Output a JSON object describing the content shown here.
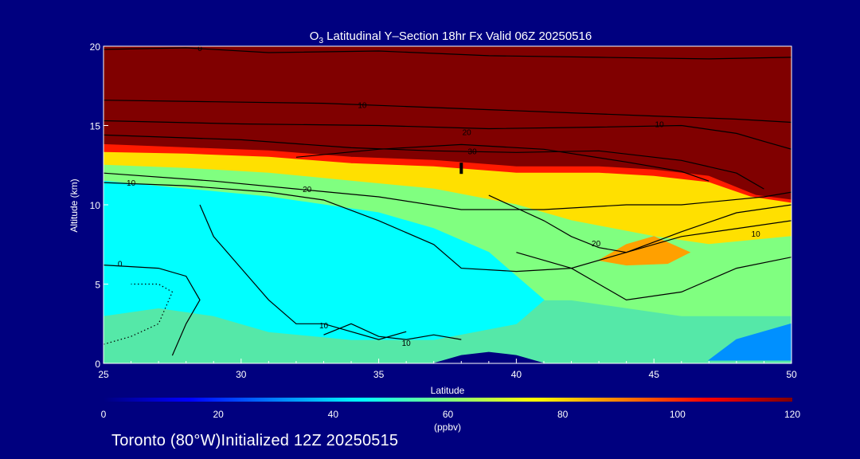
{
  "footer": {
    "location": "Toronto (80°W)",
    "initialized": "Initialized 12Z 20250515"
  },
  "chart_data": {
    "type": "heatmap",
    "title": {
      "species_main": "O",
      "species_sub": "3",
      "rest": " Latitudinal Y–Section 18hr  Fx Valid 06Z 20250516"
    },
    "xlabel": "Latitude",
    "ylabel": "Altitude (km)",
    "xlim": [
      25,
      50
    ],
    "ylim": [
      0,
      20
    ],
    "x_ticks": [
      25,
      30,
      35,
      40,
      45,
      50
    ],
    "y_ticks": [
      0,
      5,
      10,
      15,
      20
    ],
    "colorbar": {
      "label": "(ppbv)",
      "min": 0,
      "max": 120,
      "ticks": [
        0,
        20,
        40,
        60,
        80,
        100,
        120
      ],
      "stops": [
        "#00007f",
        "#0000ff",
        "#0080ff",
        "#00ffff",
        "#80ff80",
        "#ffff00",
        "#ff8000",
        "#ff0000",
        "#800000"
      ]
    },
    "colors": {
      "background": "#00007f",
      "high": "#800000",
      "contour": "#000000"
    },
    "field_regions": [
      {
        "name": "stratosphere",
        "value": 120,
        "color": "#800000",
        "points": [
          [
            25,
            20
          ],
          [
            50,
            20
          ],
          [
            50,
            10.3
          ],
          [
            48.7,
            10.6
          ],
          [
            47,
            11.8
          ],
          [
            45,
            12.2
          ],
          [
            43,
            12.4
          ],
          [
            40,
            12.4
          ],
          [
            37,
            12.8
          ],
          [
            34,
            13
          ],
          [
            31,
            13.4
          ],
          [
            28,
            13.6
          ],
          [
            25,
            13.8
          ]
        ]
      },
      {
        "name": "transition",
        "value": 110,
        "color": "#ff1a00",
        "points": [
          [
            25,
            13.8
          ],
          [
            28,
            13.6
          ],
          [
            31,
            13.4
          ],
          [
            34,
            13
          ],
          [
            37,
            12.8
          ],
          [
            40,
            12.4
          ],
          [
            43,
            12.4
          ],
          [
            45,
            12.2
          ],
          [
            47,
            11.8
          ],
          [
            48.7,
            10.6
          ],
          [
            50,
            10.3
          ],
          [
            50,
            10.1
          ],
          [
            48.5,
            10.5
          ],
          [
            47,
            11.4
          ],
          [
            45,
            11.8
          ],
          [
            43,
            12
          ],
          [
            40,
            12
          ],
          [
            37,
            12.4
          ],
          [
            34,
            12.6
          ],
          [
            31,
            13
          ],
          [
            28,
            13.2
          ],
          [
            25,
            13.3
          ]
        ]
      },
      {
        "name": "upper-trop-yellow",
        "value": 80,
        "color": "#ffe000",
        "points": [
          [
            25,
            13.3
          ],
          [
            28,
            13.2
          ],
          [
            31,
            13
          ],
          [
            34,
            12.6
          ],
          [
            37,
            12.4
          ],
          [
            40,
            12
          ],
          [
            43,
            12
          ],
          [
            45,
            11.8
          ],
          [
            47,
            11.4
          ],
          [
            48.5,
            10.5
          ],
          [
            50,
            10.1
          ],
          [
            50,
            8
          ],
          [
            47,
            7.5
          ],
          [
            45,
            8
          ],
          [
            42,
            9
          ],
          [
            40,
            10
          ],
          [
            37,
            11
          ],
          [
            34,
            11.5
          ],
          [
            31,
            12
          ],
          [
            28,
            12.3
          ],
          [
            25,
            12.5
          ]
        ]
      },
      {
        "name": "green-mid",
        "value": 65,
        "color": "#80ff80",
        "points": [
          [
            25,
            12.5
          ],
          [
            28,
            12.3
          ],
          [
            31,
            12
          ],
          [
            34,
            11.5
          ],
          [
            37,
            11
          ],
          [
            40,
            10
          ],
          [
            42,
            9
          ],
          [
            45,
            8
          ],
          [
            47,
            7.5
          ],
          [
            50,
            8
          ],
          [
            50,
            3
          ],
          [
            46,
            3
          ],
          [
            42,
            4
          ],
          [
            39,
            4
          ],
          [
            36,
            3.5
          ],
          [
            33,
            3
          ],
          [
            30,
            3
          ],
          [
            27,
            4
          ],
          [
            25,
            4
          ]
        ]
      },
      {
        "name": "cyan-core",
        "value": 55,
        "color": "#00ffff",
        "points": [
          [
            25,
            11.5
          ],
          [
            28,
            11
          ],
          [
            31,
            10.5
          ],
          [
            33,
            10
          ],
          [
            35,
            9.5
          ],
          [
            37,
            8.5
          ],
          [
            39,
            7
          ],
          [
            40,
            5.5
          ],
          [
            41,
            4
          ],
          [
            40,
            2.5
          ],
          [
            37,
            1.5
          ],
          [
            34,
            1.5
          ],
          [
            31,
            2
          ],
          [
            29,
            3
          ],
          [
            27,
            3.5
          ],
          [
            25,
            3
          ]
        ]
      },
      {
        "name": "orange-bulge",
        "value": 88,
        "color": "#ffa000",
        "points": [
          [
            43,
            6.5
          ],
          [
            44,
            7.5
          ],
          [
            45,
            8
          ],
          [
            46.3,
            7
          ],
          [
            45.5,
            6.3
          ],
          [
            44,
            6.2
          ]
        ]
      },
      {
        "name": "blue-low",
        "value": 35,
        "color": "#0090ff",
        "points": [
          [
            47,
            0.2
          ],
          [
            48,
            1.5
          ],
          [
            50,
            2.5
          ],
          [
            50,
            0.2
          ]
        ]
      },
      {
        "name": "dark-blue-valley",
        "value": 15,
        "color": "#00007f",
        "points": [
          [
            37,
            0
          ],
          [
            38,
            0.5
          ],
          [
            39,
            0.7
          ],
          [
            40,
            0.5
          ],
          [
            41,
            0
          ],
          [
            37,
            0
          ]
        ]
      }
    ],
    "contours": [
      {
        "level": 0,
        "label_at": [
          28.5,
          19.9
        ],
        "points": [
          [
            25,
            19.8
          ],
          [
            28,
            19.9
          ],
          [
            31,
            19.6
          ],
          [
            35,
            19.7
          ],
          [
            39,
            19.4
          ],
          [
            43,
            19.3
          ],
          [
            47,
            19.2
          ],
          [
            50,
            19.3
          ]
        ]
      },
      {
        "level": 10,
        "label_at": [
          34.4,
          16.3
        ],
        "points": [
          [
            25,
            16.6
          ],
          [
            29,
            16.5
          ],
          [
            33,
            16.4
          ],
          [
            36,
            16.2
          ],
          [
            39,
            16
          ],
          [
            42,
            15.8
          ],
          [
            45,
            15.6
          ],
          [
            48,
            15.4
          ],
          [
            50,
            15.2
          ]
        ]
      },
      {
        "level": 10,
        "label_at": [
          45.2,
          15.1
        ],
        "points": [
          [
            25,
            15.3
          ],
          [
            30,
            15.1
          ],
          [
            35,
            15
          ],
          [
            39,
            14.8
          ],
          [
            43,
            14.9
          ],
          [
            46,
            15
          ],
          [
            48,
            14.5
          ],
          [
            49,
            14
          ],
          [
            50,
            13.5
          ]
        ]
      },
      {
        "level": 20,
        "label_at": [
          38.2,
          14.6
        ],
        "points": [
          [
            25,
            14.4
          ],
          [
            30,
            14.1
          ],
          [
            34,
            13.6
          ],
          [
            37,
            13.4
          ],
          [
            40,
            13.3
          ],
          [
            43,
            13.4
          ],
          [
            46,
            12.8
          ],
          [
            48,
            12
          ],
          [
            49,
            11
          ]
        ]
      },
      {
        "level": 30,
        "label_at": [
          38.4,
          13.4
        ],
        "points": [
          [
            32,
            13
          ],
          [
            35,
            13.5
          ],
          [
            38,
            13.8
          ],
          [
            41,
            13.5
          ],
          [
            44,
            12.7
          ],
          [
            46,
            12.1
          ],
          [
            47,
            11.5
          ]
        ]
      },
      {
        "level": 20,
        "label_at": [
          32.4,
          11
        ],
        "points": [
          [
            25,
            12
          ],
          [
            29,
            11.5
          ],
          [
            32,
            11
          ],
          [
            35,
            10.5
          ],
          [
            38,
            9.7
          ],
          [
            41,
            9.7
          ],
          [
            44,
            10
          ],
          [
            46,
            10
          ],
          [
            49,
            10.5
          ],
          [
            50,
            10.8
          ]
        ]
      },
      {
        "level": 10,
        "label_at": [
          26,
          11.4
        ],
        "points": [
          [
            25,
            11.4
          ],
          [
            28,
            11.2
          ],
          [
            31,
            10.8
          ],
          [
            33,
            10.3
          ],
          [
            35,
            9
          ],
          [
            37,
            7.5
          ],
          [
            38,
            6
          ],
          [
            40,
            5.8
          ],
          [
            42,
            6
          ],
          [
            44,
            7
          ],
          [
            46,
            8
          ],
          [
            48,
            8.5
          ],
          [
            50,
            9
          ]
        ]
      },
      {
        "level": 20,
        "label_at": [
          42.9,
          7.6
        ],
        "points": [
          [
            39,
            10.6
          ],
          [
            40,
            9.8
          ],
          [
            41,
            9
          ],
          [
            42,
            8
          ],
          [
            43,
            7.3
          ],
          [
            44,
            7
          ],
          [
            46,
            8.3
          ],
          [
            48,
            9.5
          ],
          [
            50,
            10
          ]
        ]
      },
      {
        "level": 10,
        "label_at": [
          48.7,
          8.2
        ],
        "points": [
          [
            40,
            7
          ],
          [
            42,
            6
          ],
          [
            43,
            5
          ],
          [
            44,
            4
          ],
          [
            46,
            4.5
          ],
          [
            48,
            6
          ],
          [
            50,
            6.7
          ]
        ]
      },
      {
        "level": 0,
        "label_at": [
          25.6,
          6.3
        ],
        "points": [
          [
            25,
            6.2
          ],
          [
            27,
            6
          ],
          [
            28,
            5.5
          ],
          [
            28.5,
            4
          ],
          [
            28,
            2.5
          ],
          [
            27.5,
            0.5
          ]
        ]
      },
      {
        "level": 10,
        "label_at": [
          33,
          2.4
        ],
        "points": [
          [
            28.5,
            10
          ],
          [
            29,
            8
          ],
          [
            30,
            6
          ],
          [
            31,
            4
          ],
          [
            32,
            2.5
          ],
          [
            33,
            2.5
          ],
          [
            35,
            1.5
          ],
          [
            36,
            2
          ]
        ]
      },
      {
        "level": 10,
        "label_at": [
          36,
          1.3
        ],
        "points": [
          [
            33,
            1.8
          ],
          [
            34,
            2.5
          ],
          [
            35,
            1.7
          ],
          [
            36,
            1.5
          ],
          [
            37,
            1.8
          ],
          [
            38,
            1.5
          ]
        ]
      }
    ],
    "dotted_contour": {
      "points": [
        [
          25,
          1.2
        ],
        [
          26,
          1.7
        ],
        [
          27,
          2.5
        ],
        [
          27.5,
          4.5
        ],
        [
          27,
          5
        ],
        [
          26,
          5
        ]
      ]
    },
    "marker": {
      "x": 38,
      "y": 12.3
    }
  }
}
